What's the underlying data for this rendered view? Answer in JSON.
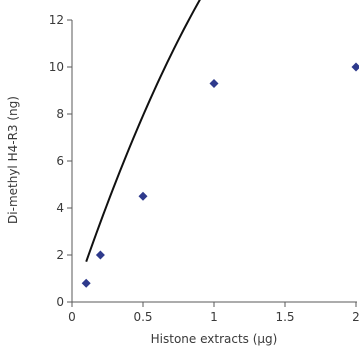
{
  "chart_data": {
    "type": "scatter",
    "xlabel": "Histone extracts  (μg)",
    "ylabel": "Di-methyl H4-R3  (ng)",
    "xlim": [
      0,
      2
    ],
    "ylim": [
      0,
      12
    ],
    "xticks": [
      0,
      0.5,
      1,
      1.5,
      2
    ],
    "xtick_labels": [
      "0",
      "0.5",
      "1",
      "1.5",
      "2"
    ],
    "yticks": [
      0,
      2,
      4,
      6,
      8,
      10,
      12
    ],
    "ytick_labels": [
      "0",
      "2",
      "4",
      "6",
      "8",
      "10",
      "12"
    ],
    "grid": false,
    "series": [
      {
        "kind": "points",
        "marker": "diamond",
        "color": "#2e3a8c",
        "x": [
          0.1,
          0.2,
          0.5,
          1.0,
          2.0
        ],
        "y": [
          0.8,
          2.0,
          4.5,
          9.3,
          10.0
        ]
      },
      {
        "kind": "trendline",
        "fit": "quadratic",
        "color": "#111111",
        "coefficients": [
          -4.034,
          17.96,
          -0.04
        ],
        "x_range": [
          0.1,
          2.0
        ]
      }
    ]
  }
}
